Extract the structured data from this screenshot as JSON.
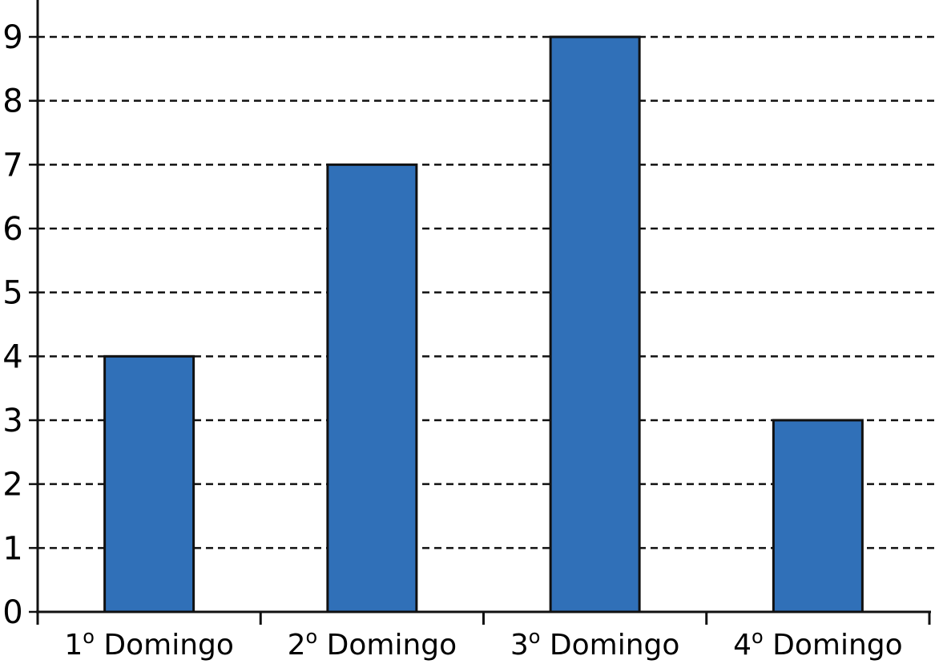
{
  "chart_data": {
    "type": "bar",
    "categories": [
      {
        "num": "1",
        "ord": "o",
        "name": "Domingo"
      },
      {
        "num": "2",
        "ord": "o",
        "name": "Domingo"
      },
      {
        "num": "3",
        "ord": "o",
        "name": "Domingo"
      },
      {
        "num": "4",
        "ord": "o",
        "name": "Domingo"
      }
    ],
    "values": [
      4,
      7,
      9,
      3
    ],
    "title": "",
    "xlabel": "",
    "ylabel": "",
    "ylim": [
      0,
      9
    ],
    "yticks": [
      "0",
      "1",
      "2",
      "3",
      "4",
      "5",
      "6",
      "7",
      "8",
      "9"
    ],
    "grid": "horizontal dashed",
    "legend": "none",
    "bar_color": "#3070b8",
    "bar_edge_color": "#111111"
  }
}
